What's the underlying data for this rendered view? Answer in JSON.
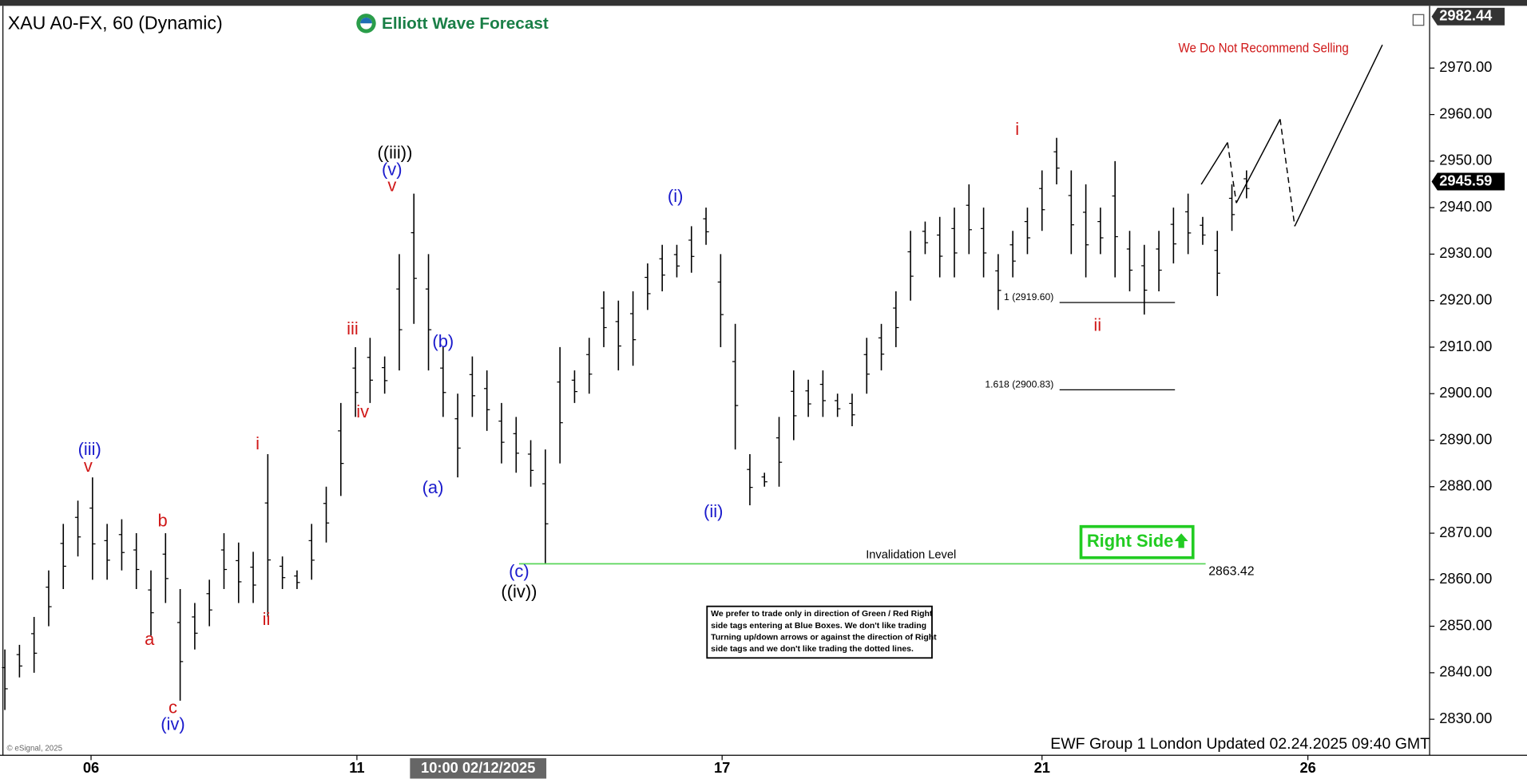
{
  "chart_data": {
    "type": "ohlc",
    "title": "XAU A0-FX, 60 (Dynamic)",
    "brand": "Elliott Wave Forecast",
    "warning": "We Do Not Recommend Selling",
    "right_side": "Right Side",
    "footer": "EWF Group 1 London Updated 02.24.2025 09:40 GMT",
    "copyright": "© eSignal, 2025",
    "note": [
      "We prefer to trade only in direction of Green / Red Right",
      "side tags entering at Blue Boxes. We don't like trading",
      "Turning up/down arrows or against the direction of Right",
      "side tags and we don't like trading the dotted lines."
    ],
    "color": "#000000",
    "high": [
      2845,
      2846,
      2852,
      2862,
      2872,
      2877,
      2882,
      2872,
      2873,
      2870,
      2862,
      2870,
      2858,
      2855,
      2860,
      2870,
      2868,
      2866,
      2887,
      2865,
      2862,
      2872,
      2880,
      2898,
      2910,
      2912,
      2908,
      2930,
      2943,
      2930,
      2910,
      2900,
      2908,
      2905,
      2898,
      2895,
      2890,
      2888,
      2910,
      2905,
      2912,
      2922,
      2920,
      2922,
      2928,
      2932,
      2932,
      2936,
      2940,
      2930,
      2915,
      2887,
      2883,
      2895,
      2905,
      2903,
      2905,
      2900,
      2900,
      2912,
      2915,
      2922,
      2935,
      2937,
      2938,
      2940,
      2945,
      2940,
      2930,
      2935,
      2940,
      2948,
      2955,
      2948,
      2945,
      2940,
      2950,
      2935,
      2932,
      2935,
      2940,
      2943,
      2938,
      2935,
      2945,
      2948
    ],
    "low": [
      2832,
      2839,
      2840,
      2850,
      2858,
      2865,
      2860,
      2860,
      2862,
      2858,
      2848,
      2855,
      2834,
      2845,
      2850,
      2858,
      2855,
      2855,
      2852,
      2858,
      2858,
      2860,
      2868,
      2878,
      2895,
      2898,
      2900,
      2905,
      2915,
      2905,
      2895,
      2882,
      2895,
      2892,
      2885,
      2883,
      2880,
      2863.42,
      2885,
      2898,
      2900,
      2910,
      2905,
      2906,
      2918,
      2922,
      2925,
      2926,
      2932,
      2910,
      2888,
      2876,
      2880,
      2880,
      2890,
      2895,
      2895,
      2895,
      2893,
      2900,
      2905,
      2910,
      2920,
      2930,
      2925,
      2925,
      2930,
      2925,
      2918,
      2925,
      2930,
      2935,
      2945,
      2930,
      2925,
      2930,
      2925,
      2922,
      2917,
      2922,
      2928,
      2930,
      2932,
      2921,
      2935,
      2942
    ],
    "xlim": [
      -0.3333,
      97.5333
    ],
    "ylim": [
      2822.26,
      2982.96
    ],
    "xticks": [
      {
        "value": 5.9,
        "label": "06"
      },
      {
        "value": 24.1,
        "label": "11"
      },
      {
        "value": 49.1,
        "label": "17"
      },
      {
        "value": 71.0,
        "label": "21"
      },
      {
        "value": 89.2,
        "label": "26"
      }
    ],
    "cursor": {
      "value": 32.4,
      "label": "10:00 02/12/2025"
    },
    "yticks": [
      {
        "value": 2830,
        "label": "2830.00"
      },
      {
        "value": 2840,
        "label": "2840.00"
      },
      {
        "value": 2850,
        "label": "2850.00"
      },
      {
        "value": 2860,
        "label": "2860.00"
      },
      {
        "value": 2870,
        "label": "2870.00"
      },
      {
        "value": 2880,
        "label": "2880.00"
      },
      {
        "value": 2890,
        "label": "2890.00"
      },
      {
        "value": 2900,
        "label": "2900.00"
      },
      {
        "value": 2910,
        "label": "2910.00"
      },
      {
        "value": 2920,
        "label": "2920.00"
      },
      {
        "value": 2930,
        "label": "2930.00"
      },
      {
        "value": 2940,
        "label": "2940.00"
      },
      {
        "value": 2950,
        "label": "2950.00"
      },
      {
        "value": 2960,
        "label": "2960.00"
      },
      {
        "value": 2970,
        "label": "2970.00"
      }
    ],
    "top_price": 2982.44,
    "last_price": 2945.59,
    "projection": {
      "x": [
        81.9,
        83.7,
        84.3,
        87.3,
        88.3,
        94.3
      ],
      "values": [
        2945,
        2954,
        2941,
        2959,
        2936,
        2975
      ],
      "dashed": [
        false,
        true,
        false,
        true,
        false
      ],
      "color": "#000000"
    },
    "invalidation": {
      "label": "Invalidation Level",
      "value": 2863.42,
      "x": [
        35.2,
        82.2
      ],
      "color": "#5ad65a"
    },
    "fib_levels": [
      {
        "value": 2919.6,
        "label": "1 (2919.60)"
      },
      {
        "value": 2900.83,
        "label": "1.618 (2900.83)"
      }
    ],
    "fib_x": [
      72.2,
      80.1
    ],
    "annotations": [
      {
        "text": "(iii)",
        "x": 5.8,
        "y": 2887.8,
        "color": "#1a1acc"
      },
      {
        "text": "v",
        "x": 5.7,
        "y": 2884.2,
        "color": "#d01818"
      },
      {
        "text": "b",
        "x": 10.8,
        "y": 2872.5,
        "color": "#d01818"
      },
      {
        "text": "a",
        "x": 9.9,
        "y": 2847.0,
        "color": "#d01818"
      },
      {
        "text": "c",
        "x": 11.5,
        "y": 2832.3,
        "color": "#d01818"
      },
      {
        "text": "(iv)",
        "x": 11.5,
        "y": 2828.7,
        "color": "#1a1acc"
      },
      {
        "text": "i",
        "x": 17.3,
        "y": 2889.0,
        "color": "#d01818"
      },
      {
        "text": "ii",
        "x": 17.9,
        "y": 2851.3,
        "color": "#d01818"
      },
      {
        "text": "iii",
        "x": 23.8,
        "y": 2913.7,
        "color": "#d01818"
      },
      {
        "text": "iv",
        "x": 24.5,
        "y": 2895.9,
        "color": "#d01818"
      },
      {
        "text": "((iii))",
        "x": 26.7,
        "y": 2951.6,
        "color": "#000000"
      },
      {
        "text": "(v)",
        "x": 26.5,
        "y": 2948.0,
        "color": "#1a1acc"
      },
      {
        "text": "v",
        "x": 26.5,
        "y": 2944.5,
        "color": "#d01818"
      },
      {
        "text": "(b)",
        "x": 30.0,
        "y": 2911.0,
        "color": "#1a1acc"
      },
      {
        "text": "(a)",
        "x": 29.3,
        "y": 2879.6,
        "color": "#1a1acc"
      },
      {
        "text": "(c)",
        "x": 35.2,
        "y": 2861.6,
        "color": "#1a1acc"
      },
      {
        "text": "((iv))",
        "x": 35.2,
        "y": 2857.2,
        "color": "#000000"
      },
      {
        "text": "(i)",
        "x": 45.9,
        "y": 2942.2,
        "color": "#1a1acc"
      },
      {
        "text": "(ii)",
        "x": 48.5,
        "y": 2874.4,
        "color": "#1a1acc"
      },
      {
        "text": "i",
        "x": 69.3,
        "y": 2956.6,
        "color": "#d01818"
      },
      {
        "text": "ii",
        "x": 74.8,
        "y": 2914.5,
        "color": "#d01818"
      }
    ]
  }
}
